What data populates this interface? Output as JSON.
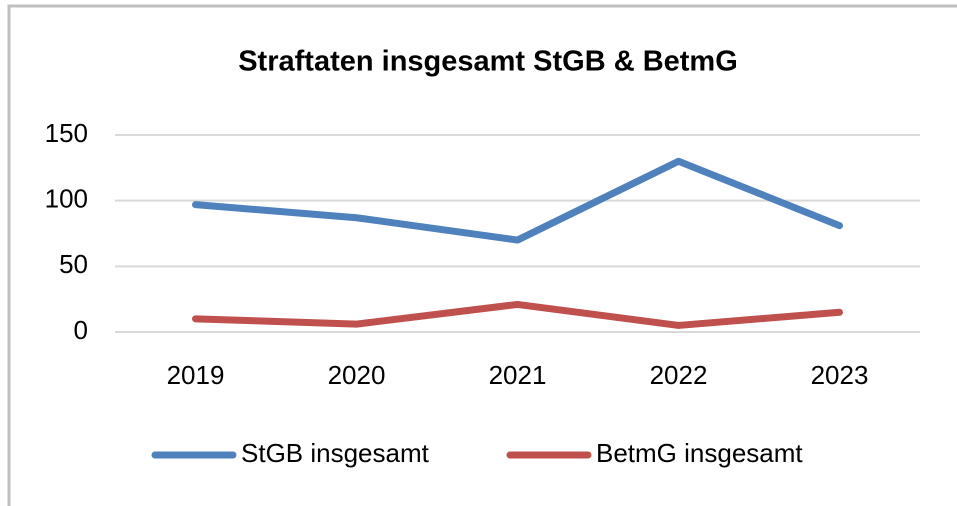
{
  "chart_data": {
    "type": "line",
    "title": "Straftaten insgesamt StGB & BetmG",
    "categories": [
      "2019",
      "2020",
      "2021",
      "2022",
      "2023"
    ],
    "series": [
      {
        "name": "StGB insgesamt",
        "color": "#4f81bd",
        "values": [
          97,
          87,
          70,
          130,
          81
        ]
      },
      {
        "name": "BetmG insgesamt",
        "color": "#c0504d",
        "values": [
          10,
          6,
          21,
          5,
          15
        ]
      }
    ],
    "ylim": [
      0,
      150
    ],
    "yticks": [
      0,
      50,
      100,
      150
    ],
    "grid": true,
    "legend": "bottom"
  }
}
